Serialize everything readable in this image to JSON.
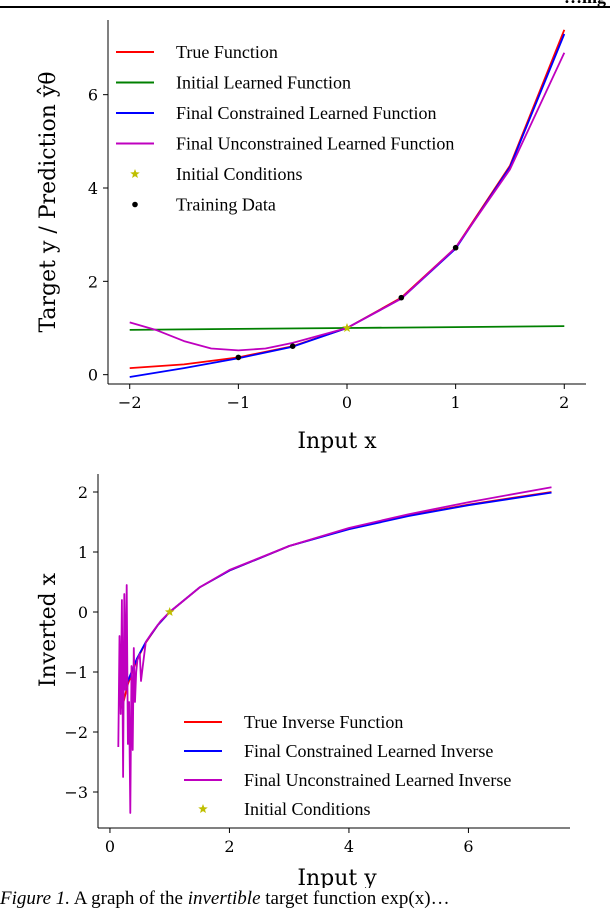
{
  "page": {
    "header_fragment": "…ing",
    "caption": {
      "label": "Figure 1.",
      "text_before": " A graph of the ",
      "emphasis": "invertible",
      "text_after": " target function exp(x)…"
    }
  },
  "chart_data": [
    {
      "type": "line",
      "xlabel": "Input x",
      "ylabel": "Target y / Prediction ŷθ",
      "xlim": [
        -2.2,
        2.2
      ],
      "ylim": [
        -0.2,
        7.6
      ],
      "xticks": [
        -2,
        -1,
        0,
        1,
        2
      ],
      "yticks": [
        0,
        2,
        4,
        6
      ],
      "grid": false,
      "legend_position": "top-left",
      "series": [
        {
          "name": "True Function",
          "color": "#ff0000",
          "x": [
            -2,
            -1.5,
            -1,
            -0.5,
            0,
            0.5,
            1,
            1.5,
            2
          ],
          "y": [
            0.14,
            0.22,
            0.37,
            0.61,
            1.0,
            1.65,
            2.72,
            4.48,
            7.39
          ]
        },
        {
          "name": "Initial Learned Function",
          "color": "#008000",
          "x": [
            -2,
            -1,
            0,
            1,
            2
          ],
          "y": [
            0.96,
            0.98,
            1.0,
            1.02,
            1.04
          ]
        },
        {
          "name": "Final Constrained Learned Function",
          "color": "#0000ff",
          "x": [
            -2,
            -1.5,
            -1,
            -0.5,
            0,
            0.5,
            1,
            1.5,
            2
          ],
          "y": [
            -0.05,
            0.14,
            0.35,
            0.6,
            1.0,
            1.63,
            2.7,
            4.45,
            7.3
          ]
        },
        {
          "name": "Final Unconstrained Learned Function",
          "color": "#bf00bf",
          "x": [
            -2,
            -1.75,
            -1.5,
            -1.25,
            -1,
            -0.75,
            -0.5,
            0,
            0.5,
            1,
            1.5,
            2
          ],
          "y": [
            1.12,
            0.95,
            0.72,
            0.56,
            0.52,
            0.56,
            0.68,
            1.0,
            1.63,
            2.72,
            4.4,
            6.9
          ]
        }
      ],
      "initial_conditions": {
        "name": "Initial Conditions",
        "color": "#bfbf00",
        "x": [
          0
        ],
        "y": [
          1
        ]
      },
      "training_data": {
        "name": "Training Data",
        "color": "#000000",
        "x": [
          -1,
          -0.5,
          0.5,
          1
        ],
        "y": [
          0.37,
          0.61,
          1.65,
          2.72
        ]
      }
    },
    {
      "type": "line",
      "xlabel": "Input y",
      "ylabel": "Inverted x",
      "xlim": [
        -0.2,
        7.7
      ],
      "ylim": [
        -3.6,
        2.3
      ],
      "xticks": [
        0,
        2,
        4,
        6
      ],
      "yticks": [
        -3,
        -2,
        -1,
        0,
        1,
        2
      ],
      "grid": false,
      "legend_position": "bottom-right",
      "series": [
        {
          "name": "True Inverse Function",
          "color": "#ff0000",
          "x": [
            0.2,
            0.3,
            0.45,
            0.6,
            0.8,
            1.0,
            1.5,
            2,
            3,
            4,
            5,
            6,
            7.39
          ],
          "y": [
            -1.61,
            -1.2,
            -0.8,
            -0.51,
            -0.22,
            0.0,
            0.41,
            0.69,
            1.1,
            1.39,
            1.61,
            1.79,
            2.0
          ]
        },
        {
          "name": "Final Constrained Learned Inverse",
          "color": "#0000ff",
          "x": [
            0.18,
            0.3,
            0.45,
            0.6,
            0.8,
            1.0,
            1.5,
            2,
            3,
            4,
            5,
            6,
            7.39
          ],
          "y": [
            -1.4,
            -1.15,
            -0.78,
            -0.5,
            -0.22,
            0.0,
            0.41,
            0.69,
            1.1,
            1.38,
            1.6,
            1.78,
            1.99
          ]
        },
        {
          "name": "Final Unconstrained Learned Inverse",
          "color": "#bf00bf",
          "x": [
            0.14,
            0.16,
            0.18,
            0.2,
            0.22,
            0.24,
            0.26,
            0.28,
            0.3,
            0.32,
            0.34,
            0.36,
            0.38,
            0.4,
            0.42,
            0.44,
            0.46,
            0.5,
            0.52,
            0.55,
            0.6,
            0.7,
            0.85,
            1.0,
            1.5,
            2,
            3,
            4,
            5,
            6,
            7.39
          ],
          "y": [
            -2.25,
            -0.4,
            -1.7,
            0.2,
            -2.75,
            0.3,
            -1.3,
            0.45,
            -2.2,
            -1.5,
            -3.35,
            -0.9,
            -2.3,
            -0.6,
            -1.5,
            -1.0,
            -0.8,
            -0.7,
            -1.15,
            -0.9,
            -0.5,
            -0.35,
            -0.15,
            0.0,
            0.41,
            0.7,
            1.1,
            1.4,
            1.63,
            1.83,
            2.08
          ]
        }
      ],
      "initial_conditions": {
        "name": "Initial Conditions",
        "color": "#bfbf00",
        "x": [
          1
        ],
        "y": [
          0
        ]
      }
    }
  ]
}
